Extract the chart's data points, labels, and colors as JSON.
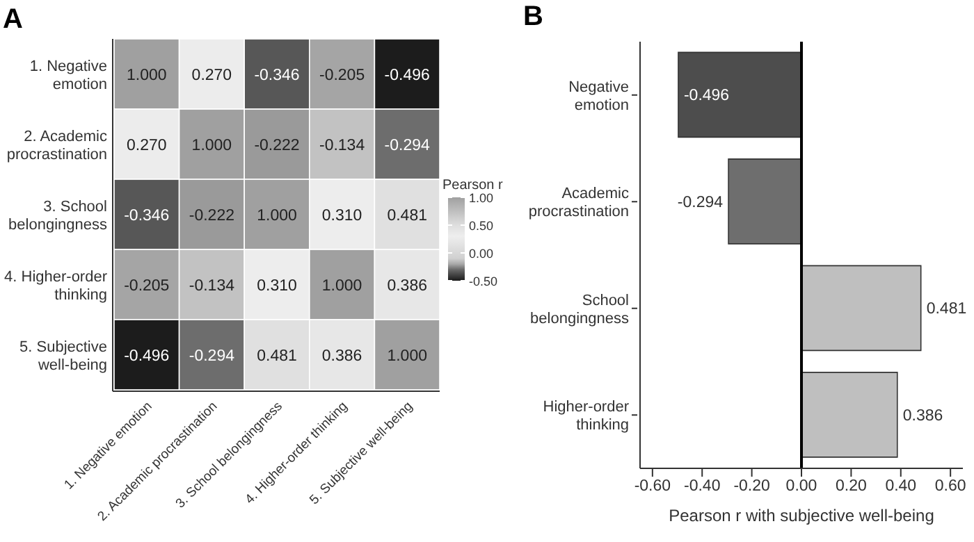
{
  "chart_data": [
    {
      "type": "heatmap",
      "title": "A",
      "clabel": "Pearson r",
      "categories": [
        "1. Negative emotion",
        "2. Academic procrastination",
        "3. School belongingness",
        "4. Higher-order thinking",
        "5. Subjective well-being"
      ],
      "y_categories": [
        "1. Negative emotion",
        "2. Academic procrastination",
        "3. School belongingness",
        "4. Higher-order thinking",
        "5. Subjective well-being"
      ],
      "cells": [
        [
          1.0,
          0.27,
          -0.346,
          -0.205,
          -0.496
        ],
        [
          0.27,
          1.0,
          -0.222,
          -0.134,
          -0.294
        ],
        [
          -0.346,
          -0.222,
          1.0,
          0.31,
          0.481
        ],
        [
          -0.205,
          -0.134,
          0.31,
          1.0,
          0.386
        ],
        [
          -0.496,
          -0.294,
          0.481,
          0.386,
          1.0
        ]
      ],
      "cell_labels": [
        [
          "1.000",
          "0.270",
          "-0.346",
          "-0.205",
          "-0.496"
        ],
        [
          "0.270",
          "1.000",
          "-0.222",
          "-0.134",
          "-0.294"
        ],
        [
          "-0.346",
          "-0.222",
          "1.000",
          "0.310",
          "0.481"
        ],
        [
          "-0.205",
          "-0.134",
          "0.310",
          "1.000",
          "0.386"
        ],
        [
          "-0.496",
          "-0.294",
          "0.481",
          "0.386",
          "1.000"
        ]
      ],
      "clim": [
        -0.5,
        1.0
      ],
      "cticks": [
        {
          "value": 1.0,
          "label": "1.00"
        },
        {
          "value": 0.5,
          "label": "0.50"
        },
        {
          "value": 0.0,
          "label": "0.00"
        },
        {
          "value": -0.5,
          "label": "-0.50"
        }
      ]
    },
    {
      "type": "bar",
      "orientation": "horizontal",
      "title": "B",
      "xlabel": "Pearson r with subjective well-being",
      "categories": [
        "Negative emotion",
        "Academic procrastination",
        "School belongingness",
        "Higher-order thinking"
      ],
      "values": [
        -0.496,
        -0.294,
        0.481,
        0.386
      ],
      "colors": [
        "#4d4d4d",
        "#6e6e6e",
        "#bfbfbf",
        "#bfbfbf"
      ],
      "data_labels": true,
      "xlim": [
        -0.65,
        0.65
      ],
      "xticks": [
        {
          "value": -0.6,
          "label": "-0.60"
        },
        {
          "value": -0.4,
          "label": "-0.40"
        },
        {
          "value": -0.2,
          "label": "-0.20"
        },
        {
          "value": 0,
          "label": "0.00"
        },
        {
          "value": 0.2,
          "label": "0.20"
        },
        {
          "value": 0.4,
          "label": "0.40"
        },
        {
          "value": 0.6,
          "label": "0.60"
        }
      ],
      "ref_lines": [
        {
          "axis": "x",
          "value": 0,
          "color": "#000000"
        }
      ],
      "grid": false,
      "legend": false
    }
  ]
}
